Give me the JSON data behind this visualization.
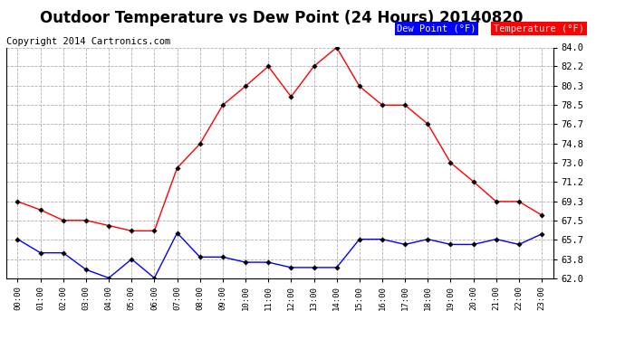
{
  "title": "Outdoor Temperature vs Dew Point (24 Hours) 20140820",
  "copyright": "Copyright 2014 Cartronics.com",
  "hours": [
    "00:00",
    "01:00",
    "02:00",
    "03:00",
    "04:00",
    "05:00",
    "06:00",
    "07:00",
    "08:00",
    "09:00",
    "10:00",
    "11:00",
    "12:00",
    "13:00",
    "14:00",
    "15:00",
    "16:00",
    "17:00",
    "18:00",
    "19:00",
    "20:00",
    "21:00",
    "22:00",
    "23:00"
  ],
  "temperature": [
    69.3,
    68.5,
    67.5,
    67.5,
    67.0,
    66.5,
    66.5,
    72.5,
    74.8,
    78.5,
    80.3,
    82.2,
    79.3,
    82.2,
    84.0,
    80.3,
    78.5,
    78.5,
    76.7,
    73.0,
    71.2,
    69.3,
    69.3,
    68.0
  ],
  "dew_point": [
    65.7,
    64.4,
    64.4,
    62.8,
    62.0,
    63.8,
    62.0,
    66.3,
    64.0,
    64.0,
    63.5,
    63.5,
    63.0,
    63.0,
    63.0,
    65.7,
    65.7,
    65.2,
    65.7,
    65.2,
    65.2,
    65.7,
    65.2,
    66.2
  ],
  "temp_color": "#ff0000",
  "dew_color": "#0000ff",
  "bg_color": "#ffffff",
  "grid_color": "#b0b0b0",
  "ylim": [
    62.0,
    84.0
  ],
  "yticks": [
    62.0,
    63.8,
    65.7,
    67.5,
    69.3,
    71.2,
    73.0,
    74.8,
    76.7,
    78.5,
    80.3,
    82.2,
    84.0
  ],
  "legend_dew_bg": "#0000ff",
  "legend_temp_bg": "#ff0000",
  "legend_text_color": "#ffffff",
  "title_fontsize": 12,
  "copyright_fontsize": 7.5
}
